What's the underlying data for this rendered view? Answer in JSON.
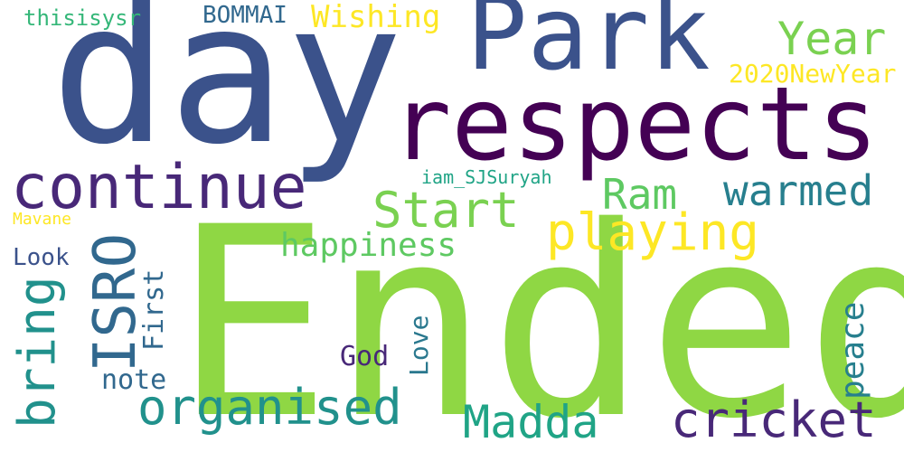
{
  "words": {
    "day": {
      "text": "day",
      "color": "#3b528b"
    },
    "ended": {
      "text": "Ended",
      "color": "#8fd744"
    },
    "respects": {
      "text": "respects",
      "color": "#440154"
    },
    "park": {
      "text": "Park",
      "color": "#3b528b"
    },
    "continue": {
      "text": "continue",
      "color": "#482878"
    },
    "year": {
      "text": "Year",
      "color": "#7ad151"
    },
    "wishing": {
      "text": "Wishing",
      "color": "#fde725"
    },
    "bommai": {
      "text": "BOMMAI",
      "color": "#31688e"
    },
    "thisisysr": {
      "text": "thisisysr",
      "color": "#35b779"
    },
    "newyear": {
      "text": "2020NewYear",
      "color": "#fde725"
    },
    "iam": {
      "text": "iam_SJSuryah",
      "color": "#20a486"
    },
    "start": {
      "text": "Start",
      "color": "#7ad151"
    },
    "ram": {
      "text": "Ram",
      "color": "#5ec962"
    },
    "warmed": {
      "text": "warmed",
      "color": "#277f8e"
    },
    "playing": {
      "text": "playing",
      "color": "#fde725"
    },
    "happiness": {
      "text": "happiness",
      "color": "#5ec962"
    },
    "mavane": {
      "text": "Mavane",
      "color": "#fde725"
    },
    "look": {
      "text": "Look",
      "color": "#3b528b"
    },
    "isro": {
      "text": "ISRO",
      "color": "#31688e"
    },
    "bring": {
      "text": "bring",
      "color": "#21918c"
    },
    "first": {
      "text": "First",
      "color": "#31688e"
    },
    "note": {
      "text": "note",
      "color": "#31688e"
    },
    "god": {
      "text": "God",
      "color": "#482878"
    },
    "love": {
      "text": "Love",
      "color": "#2a788e"
    },
    "peace": {
      "text": "peace",
      "color": "#277f8e"
    },
    "organised": {
      "text": "organised",
      "color": "#21918c"
    },
    "madda": {
      "text": "Madda",
      "color": "#20a486"
    },
    "cricket": {
      "text": "cricket",
      "color": "#482878"
    }
  }
}
